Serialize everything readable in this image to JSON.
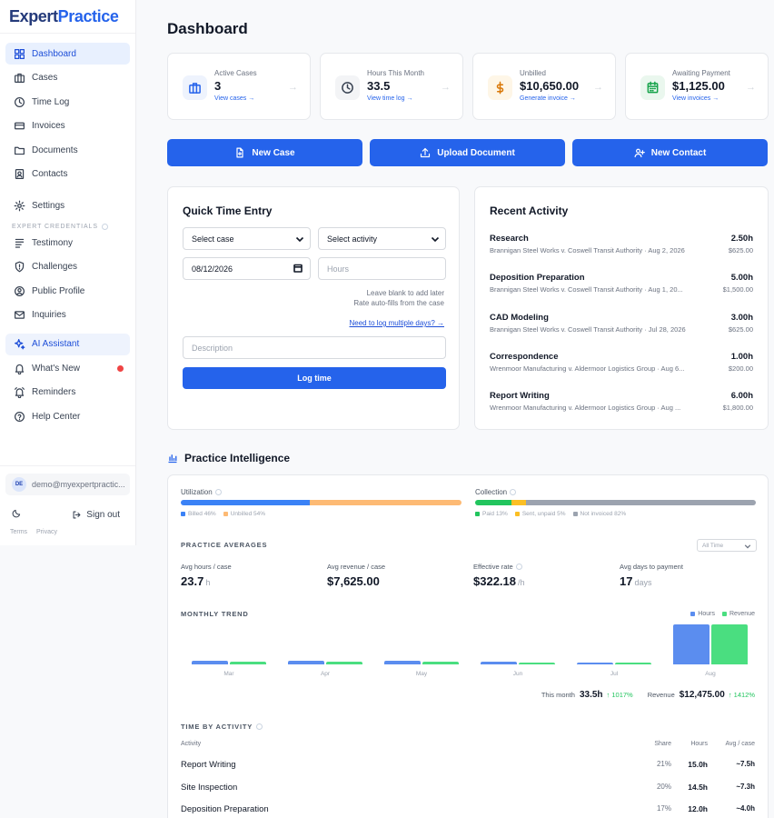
{
  "sidebar": {
    "logo": {
      "part1": "Expert",
      "part2": "Practice"
    },
    "nav": [
      {
        "label": "Dashboard",
        "icon": "grid-icon",
        "active": true
      },
      {
        "label": "Cases",
        "icon": "briefcase-icon"
      },
      {
        "label": "Time Log",
        "icon": "clock-icon"
      },
      {
        "label": "Invoices",
        "icon": "card-icon"
      },
      {
        "label": "Documents",
        "icon": "folder-icon"
      },
      {
        "label": "Contacts",
        "icon": "contact-icon"
      },
      {
        "label": "Settings",
        "icon": "gear-icon"
      }
    ],
    "credentials_label": "EXPERT CREDENTIALS",
    "credentials": [
      {
        "label": "Testimony",
        "icon": "list-icon"
      },
      {
        "label": "Challenges",
        "icon": "shield-icon"
      },
      {
        "label": "Public Profile",
        "icon": "user-circle-icon"
      },
      {
        "label": "Inquiries",
        "icon": "mail-icon"
      }
    ],
    "tools": [
      {
        "label": "AI Assistant",
        "icon": "sparkle-icon"
      },
      {
        "label": "What's New",
        "icon": "bell-icon"
      },
      {
        "label": "Reminders",
        "icon": "alarm-icon"
      },
      {
        "label": "Help Center",
        "icon": "help-icon"
      }
    ],
    "user": {
      "initials": "DE",
      "email": "demo@myexpertpractic..."
    },
    "sign_out": "Sign out",
    "terms": "Terms",
    "privacy": "Privacy"
  },
  "main": {
    "title": "Dashboard",
    "stats": [
      {
        "label": "Active Cases",
        "value": "3",
        "link": "View cases →",
        "icon": "briefcase-icon",
        "color": "#2563eb",
        "bg": "#eef3fd"
      },
      {
        "label": "Hours This Month",
        "value": "33.5",
        "link": "View time log →",
        "icon": "clock-icon",
        "color": "#374151",
        "bg": "#f3f4f6"
      },
      {
        "label": "Unbilled",
        "value": "$10,650.00",
        "link": "Generate invoice →",
        "icon": "dollar-icon",
        "color": "#d97706",
        "bg": "#fef6e7"
      },
      {
        "label": "Awaiting Payment",
        "value": "$1,125.00",
        "link": "View invoices →",
        "icon": "calendar-icon",
        "color": "#16a34a",
        "bg": "#eaf7ee"
      }
    ],
    "actions": {
      "new_case": "New Case",
      "upload_document": "Upload Document",
      "new_contact": "New Contact"
    },
    "quick_entry": {
      "title": "Quick Time Entry",
      "case_select": "Select case",
      "activity_select": "Select activity",
      "date_value": "08/12/2026",
      "hours_placeholder": "Hours",
      "hint_line1": "Leave blank to add later",
      "hint_line2": "Rate auto-fills from the case",
      "multiple_days_link": "Need to log multiple days? →",
      "description_placeholder": "Description",
      "log_button": "Log time"
    },
    "recent": {
      "title": "Recent Activity",
      "items": [
        {
          "title": "Research",
          "sub": "Brannigan Steel Works v. Coswell Transit Authority · Aug 2, 2026",
          "hours": "2.50h",
          "amount": "$625.00"
        },
        {
          "title": "Deposition Preparation",
          "sub": "Brannigan Steel Works v. Coswell Transit Authority · Aug 1, 20...",
          "hours": "5.00h",
          "amount": "$1,500.00"
        },
        {
          "title": "CAD Modeling",
          "sub": "Brannigan Steel Works v. Coswell Transit Authority · Jul 28, 2026",
          "hours": "3.00h",
          "amount": "$625.00"
        },
        {
          "title": "Correspondence",
          "sub": "Wrenmoor Manufacturing v. Aldermoor Logistics Group · Aug 6...",
          "hours": "1.00h",
          "amount": "$200.00"
        },
        {
          "title": "Report Writing",
          "sub": "Wrenmoor Manufacturing v. Aldermoor Logistics Group · Aug ...",
          "hours": "6.00h",
          "amount": "$1,800.00"
        }
      ]
    },
    "intel": {
      "title": "Practice Intelligence",
      "utilization": {
        "label": "Utilization",
        "billed_pct": 46,
        "unbilled_pct": 54,
        "billed_label": "Billed 46%",
        "unbilled_label": "Unbilled 54%",
        "billed_color": "#3b82f6",
        "unbilled_color": "#fdba74"
      },
      "collection": {
        "label": "Collection",
        "paid_pct": 13,
        "sent_pct": 5,
        "not_invoiced_pct": 82,
        "paid_label": "Paid 13%",
        "sent_label": "Sent, unpaid 5%",
        "not_invoiced_label": "Not invoiced 82%",
        "paid_color": "#22c55e",
        "sent_color": "#fbbf24",
        "not_invoiced_color": "#9ca3af"
      },
      "averages_label": "PRACTICE AVERAGES",
      "filter": "All Time",
      "averages": [
        {
          "label": "Avg hours / case",
          "value": "23.7",
          "unit": "h"
        },
        {
          "label": "Avg revenue / case",
          "value": "$7,625.00",
          "unit": ""
        },
        {
          "label": "Effective rate",
          "value": "$322.18",
          "unit": "/h"
        },
        {
          "label": "Avg days to payment",
          "value": "17",
          "unit": "days"
        }
      ],
      "trend_label": "MONTHLY TREND",
      "legend_hours": "Hours",
      "legend_revenue": "Revenue",
      "hours_color": "#5b8def",
      "revenue_color": "#4ade80",
      "this_month_label": "This month",
      "this_month_value": "33.5h",
      "this_month_change": "↑ 1017%",
      "revenue_label": "Revenue",
      "revenue_value": "$12,475.00",
      "revenue_change": "↑ 1412%",
      "time_by_activity_label": "TIME BY ACTIVITY",
      "table_headers": {
        "activity": "Activity",
        "share": "Share",
        "hours": "Hours",
        "avg": "Avg / case"
      },
      "table_rows": [
        {
          "activity": "Report Writing",
          "share": "21%",
          "hours": "15.0h",
          "avg": "~7.5h"
        },
        {
          "activity": "Site Inspection",
          "share": "20%",
          "hours": "14.5h",
          "avg": "~7.3h"
        },
        {
          "activity": "Deposition Preparation",
          "share": "17%",
          "hours": "12.0h",
          "avg": "~4.0h"
        }
      ]
    }
  },
  "chart_data": {
    "type": "bar",
    "categories": [
      "Mar",
      "Apr",
      "May",
      "Jun",
      "Jul",
      "Aug"
    ],
    "series": [
      {
        "name": "Hours",
        "values": [
          3.0,
          3.1,
          3.4,
          2.2,
          1.0,
          33.5
        ]
      },
      {
        "name": "Revenue",
        "values": [
          730,
          760,
          900,
          540,
          270,
          12475
        ]
      }
    ]
  }
}
